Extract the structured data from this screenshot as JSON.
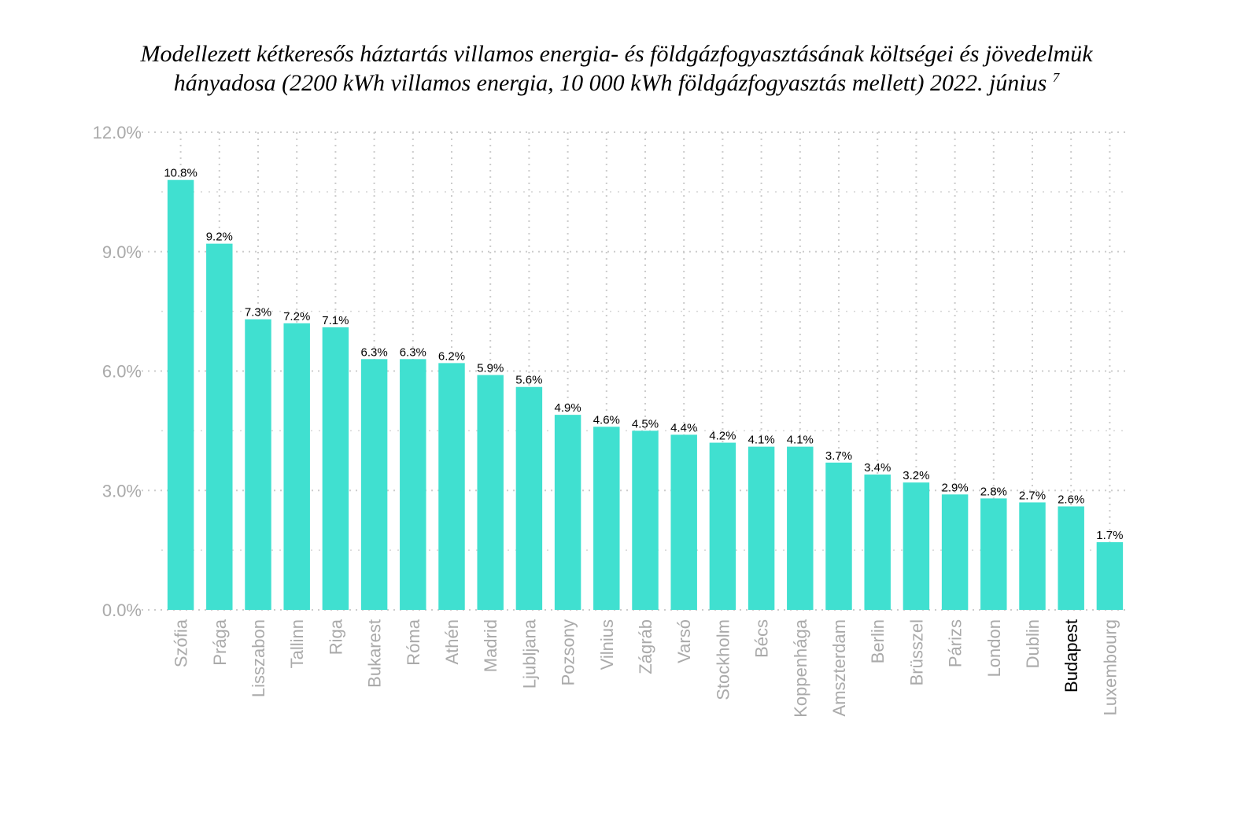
{
  "chart_data": {
    "type": "bar",
    "title_line1": "Modellezett kétkeresős háztartás villamos energia- és földgázfogyasztásának költségei és jövedelmük",
    "title_line2": "hányadosa (2200 kWh villamos energia, 10 000 kWh földgázfogyasztás mellett) 2022. június",
    "title_footnote": "7",
    "xlabel": "",
    "ylabel": "",
    "ylim": [
      0,
      12
    ],
    "y_ticks": [
      0,
      3,
      6,
      9,
      12
    ],
    "y_tick_labels": [
      "0.0%",
      "3.0%",
      "6.0%",
      "9.0%",
      "12.0%"
    ],
    "grid": true,
    "bar_color": "#40e0d0",
    "highlight_category": "Budapest",
    "highlight_label_color": "#000000",
    "categories": [
      "Szófia",
      "Prága",
      "Lisszabon",
      "Tallinn",
      "Riga",
      "Bukarest",
      "Róma",
      "Athén",
      "Madrid",
      "Ljubljana",
      "Pozsony",
      "Vilnius",
      "Zágráb",
      "Varsó",
      "Stockholm",
      "Bécs",
      "Koppenhága",
      "Amszterdam",
      "Berlin",
      "Brüsszel",
      "Párizs",
      "London",
      "Dublin",
      "Budapest",
      "Luxembourg"
    ],
    "values": [
      10.8,
      9.2,
      7.3,
      7.2,
      7.1,
      6.3,
      6.3,
      6.2,
      5.9,
      5.6,
      4.9,
      4.6,
      4.5,
      4.4,
      4.2,
      4.1,
      4.1,
      3.7,
      3.4,
      3.2,
      2.9,
      2.8,
      2.7,
      2.6,
      1.7
    ],
    "data_labels": [
      "10.8%",
      "9.2%",
      "7.3%",
      "7.2%",
      "7.1%",
      "6.3%",
      "6.3%",
      "6.2%",
      "5.9%",
      "5.6%",
      "4.9%",
      "4.6%",
      "4.5%",
      "4.4%",
      "4.2%",
      "4.1%",
      "4.1%",
      "3.7%",
      "3.4%",
      "3.2%",
      "2.9%",
      "2.8%",
      "2.7%",
      "2.6%",
      "1.7%"
    ]
  }
}
